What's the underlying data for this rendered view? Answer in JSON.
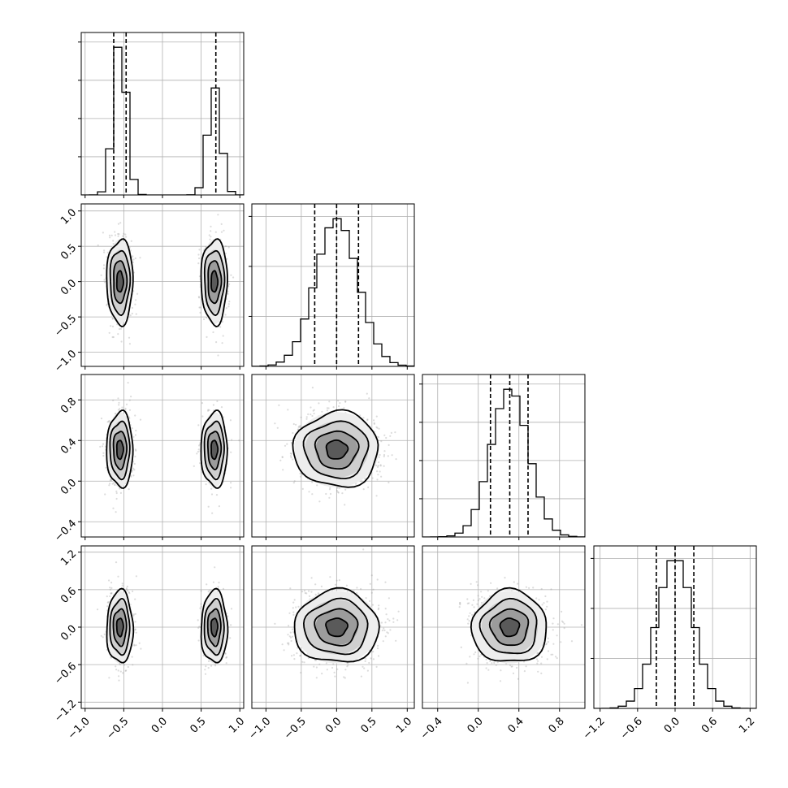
{
  "chart_data": {
    "type": "corner",
    "parameters": [
      {
        "range": [
          -1.05,
          1.05
        ],
        "ticks": [
          -1.0,
          -0.5,
          0.0,
          0.5,
          1.0
        ],
        "tick_labels": [
          "−1.0",
          "−0.5",
          "0.0",
          "0.5",
          "1.0"
        ],
        "modes": [
          {
            "mu": -0.55,
            "sigma": 0.085,
            "weight": 0.59
          },
          {
            "mu": 0.67,
            "sigma": 0.085,
            "weight": 0.41
          }
        ],
        "quantiles": [
          -0.63,
          -0.47,
          0.69
        ],
        "hist_bins": {
          "edges_min": -1.05,
          "edges_max": 1.05,
          "count": 20
        },
        "hist_y_ticks": 4
      },
      {
        "range": [
          -1.2,
          1.1
        ],
        "ticks": [
          -1.0,
          -0.5,
          0.0,
          0.5,
          1.0
        ],
        "tick_labels": [
          "−1.0",
          "−0.5",
          "0.0",
          "0.5",
          "1.0"
        ],
        "modes": [
          {
            "mu": 0.0,
            "sigma": 0.3,
            "weight": 1.0
          }
        ],
        "quantiles": [
          -0.31,
          0.0,
          0.31
        ],
        "hist_bins": {
          "edges_min": -1.2,
          "edges_max": 1.1,
          "count": 20
        },
        "hist_y_ticks": 3
      },
      {
        "range": [
          -0.55,
          1.05
        ],
        "ticks": [
          -0.4,
          0.0,
          0.4,
          0.8
        ],
        "tick_labels": [
          "−0.4",
          "0.0",
          "0.4",
          "0.8"
        ],
        "modes": [
          {
            "mu": 0.31,
            "sigma": 0.185,
            "weight": 1.0
          }
        ],
        "quantiles": [
          0.12,
          0.31,
          0.49
        ],
        "hist_bins": {
          "edges_min": -0.55,
          "edges_max": 1.05,
          "count": 20
        },
        "hist_y_ticks": 4
      },
      {
        "range": [
          -1.3,
          1.3
        ],
        "ticks": [
          -1.2,
          -0.6,
          0.0,
          0.6,
          1.2
        ],
        "tick_labels": [
          "−1.2",
          "−0.6",
          "0.0",
          "0.6",
          "1.2"
        ],
        "modes": [
          {
            "mu": 0.0,
            "sigma": 0.29,
            "weight": 1.0
          }
        ],
        "quantiles": [
          -0.3,
          0.0,
          0.3
        ],
        "hist_bins": {
          "edges_min": -1.3,
          "edges_max": 1.3,
          "count": 20
        },
        "hist_y_ticks": 3
      }
    ],
    "contour_levels_sigma": [
      0.5,
      1.0,
      1.5,
      2.0
    ],
    "scatter_points_per_panel": 900,
    "grid": true,
    "xlabels": [
      "",
      "",
      "",
      ""
    ],
    "ylabels": [
      "",
      "",
      "",
      ""
    ]
  }
}
